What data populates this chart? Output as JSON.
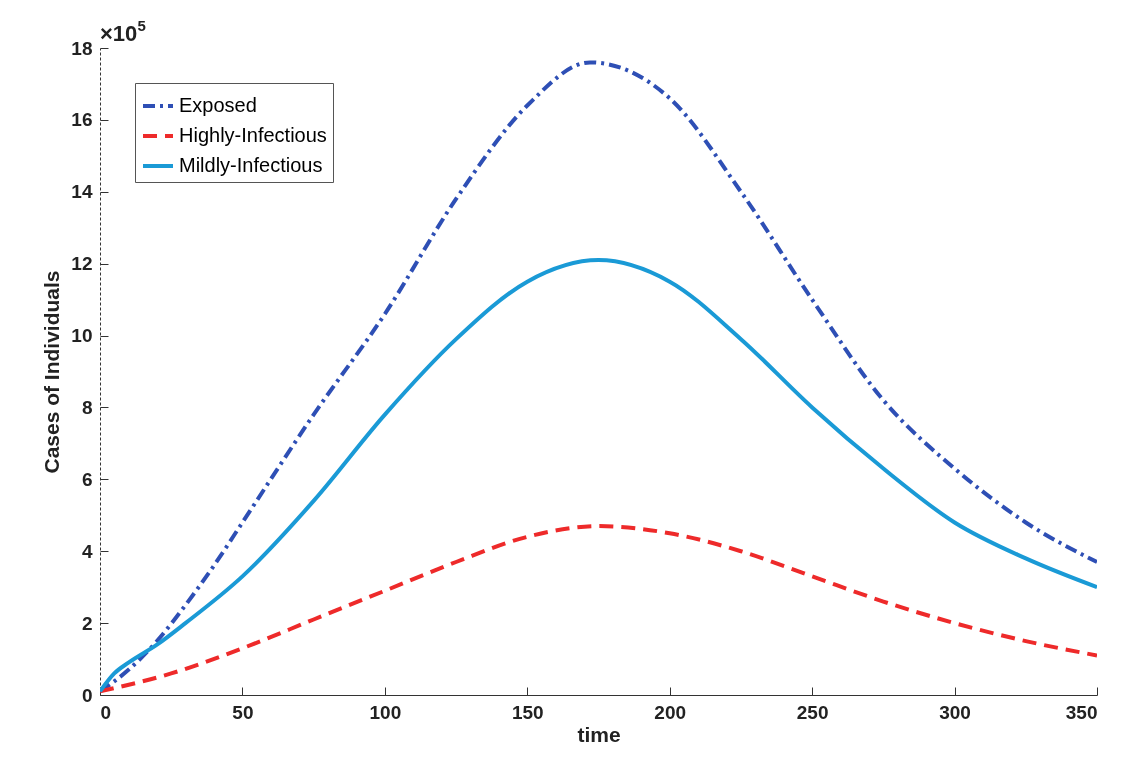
{
  "chart_data": {
    "type": "line",
    "xlabel": "time",
    "ylabel": "Cases of Individuals",
    "annotations": [
      "×10$^{5}$"
    ],
    "xlim": [
      0,
      350
    ],
    "xticks": [
      0,
      50,
      100,
      150,
      200,
      250,
      300,
      350
    ],
    "ylim": [
      0,
      18
    ],
    "yticks": [
      0,
      2,
      4,
      6,
      8,
      10,
      12,
      14,
      16,
      18
    ],
    "grid": false,
    "legend": "top left",
    "series": [
      {
        "name": "Exposed",
        "color": "#2e4fb5",
        "line_style": "dashdot",
        "x": [
          0,
          10,
          20,
          30,
          40,
          50,
          75,
          100,
          125,
          150,
          172,
          200,
          225,
          250,
          275,
          300,
          325,
          350
        ],
        "values": [
          0.1,
          0.7,
          1.5,
          2.5,
          3.6,
          4.8,
          7.8,
          10.6,
          13.8,
          16.4,
          17.6,
          16.6,
          14.0,
          11.0,
          8.2,
          6.3,
          4.8,
          3.7
        ]
      },
      {
        "name": "Highly-Infectious",
        "color": "#ee2a2a",
        "line_style": "dashed",
        "x": [
          0,
          25,
          50,
          75,
          100,
          125,
          150,
          175,
          200,
          225,
          250,
          275,
          300,
          325,
          350
        ],
        "values": [
          0.1,
          0.6,
          1.3,
          2.1,
          2.9,
          3.7,
          4.4,
          4.7,
          4.5,
          4.0,
          3.3,
          2.6,
          2.0,
          1.5,
          1.1
        ]
      },
      {
        "name": "Mildly-Infectious",
        "color": "#1a9ad6",
        "line_style": "solid",
        "x": [
          0,
          5,
          10,
          20,
          30,
          50,
          75,
          100,
          125,
          150,
          175,
          200,
          225,
          250,
          275,
          300,
          325,
          350
        ],
        "values": [
          0.1,
          0.6,
          0.9,
          1.4,
          2.0,
          3.3,
          5.4,
          7.8,
          9.9,
          11.5,
          12.1,
          11.5,
          9.9,
          8.0,
          6.3,
          4.8,
          3.8,
          3.0
        ]
      }
    ]
  }
}
